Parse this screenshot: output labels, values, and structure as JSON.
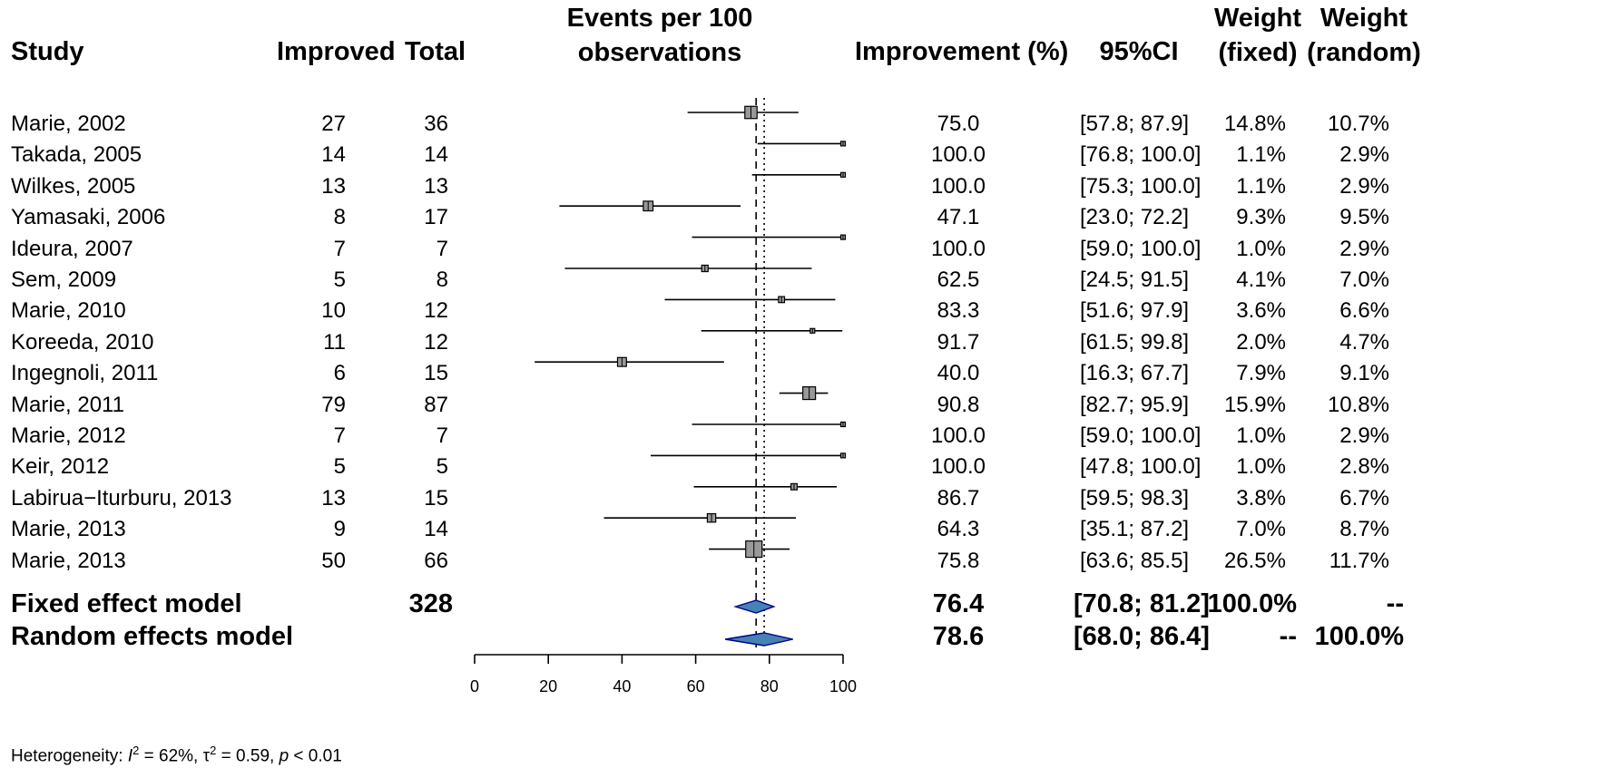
{
  "headers": {
    "study": "Study",
    "improved": "Improved",
    "total": "Total",
    "events_line1": "Events per 100",
    "events_line2": "observations",
    "improvement": "Improvement (%)",
    "ci": "95%CI",
    "wf_line1": "Weight",
    "wf_line2": "(fixed)",
    "wr_line1": "Weight",
    "wr_line2": "(random)"
  },
  "studies": [
    {
      "study": "Marie, 2002",
      "improved": "27",
      "total": "36",
      "improvement": "75.0",
      "ci": "[57.8;  87.9]",
      "wf": "14.8%",
      "wr": "10.7%",
      "est": 75.0,
      "lo": 57.8,
      "hi": 87.9,
      "w_fixed": 14.8
    },
    {
      "study": "Takada, 2005",
      "improved": "14",
      "total": "14",
      "improvement": "100.0",
      "ci": "[76.8; 100.0]",
      "wf": "1.1%",
      "wr": "2.9%",
      "est": 100.0,
      "lo": 76.8,
      "hi": 100.0,
      "w_fixed": 1.1
    },
    {
      "study": "Wilkes, 2005",
      "improved": "13",
      "total": "13",
      "improvement": "100.0",
      "ci": "[75.3; 100.0]",
      "wf": "1.1%",
      "wr": "2.9%",
      "est": 100.0,
      "lo": 75.3,
      "hi": 100.0,
      "w_fixed": 1.1
    },
    {
      "study": "Yamasaki, 2006",
      "improved": "8",
      "total": "17",
      "improvement": "47.1",
      "ci": "[23.0;  72.2]",
      "wf": "9.3%",
      "wr": "9.5%",
      "est": 47.1,
      "lo": 23.0,
      "hi": 72.2,
      "w_fixed": 9.3
    },
    {
      "study": "Ideura, 2007",
      "improved": "7",
      "total": "7",
      "improvement": "100.0",
      "ci": "[59.0; 100.0]",
      "wf": "1.0%",
      "wr": "2.9%",
      "est": 100.0,
      "lo": 59.0,
      "hi": 100.0,
      "w_fixed": 1.0
    },
    {
      "study": "Sem, 2009",
      "improved": "5",
      "total": "8",
      "improvement": "62.5",
      "ci": "[24.5;  91.5]",
      "wf": "4.1%",
      "wr": "7.0%",
      "est": 62.5,
      "lo": 24.5,
      "hi": 91.5,
      "w_fixed": 4.1
    },
    {
      "study": "Marie, 2010",
      "improved": "10",
      "total": "12",
      "improvement": "83.3",
      "ci": "[51.6;  97.9]",
      "wf": "3.6%",
      "wr": "6.6%",
      "est": 83.3,
      "lo": 51.6,
      "hi": 97.9,
      "w_fixed": 3.6
    },
    {
      "study": "Koreeda, 2010",
      "improved": "11",
      "total": "12",
      "improvement": "91.7",
      "ci": "[61.5;  99.8]",
      "wf": "2.0%",
      "wr": "4.7%",
      "est": 91.7,
      "lo": 61.5,
      "hi": 99.8,
      "w_fixed": 2.0
    },
    {
      "study": "Ingegnoli, 2011",
      "improved": "6",
      "total": "15",
      "improvement": "40.0",
      "ci": "[16.3;  67.7]",
      "wf": "7.9%",
      "wr": "9.1%",
      "est": 40.0,
      "lo": 16.3,
      "hi": 67.7,
      "w_fixed": 7.9
    },
    {
      "study": "Marie, 2011",
      "improved": "79",
      "total": "87",
      "improvement": "90.8",
      "ci": "[82.7;  95.9]",
      "wf": "15.9%",
      "wr": "10.8%",
      "est": 90.8,
      "lo": 82.7,
      "hi": 95.9,
      "w_fixed": 15.9
    },
    {
      "study": "Marie, 2012",
      "improved": "7",
      "total": "7",
      "improvement": "100.0",
      "ci": "[59.0; 100.0]",
      "wf": "1.0%",
      "wr": "2.9%",
      "est": 100.0,
      "lo": 59.0,
      "hi": 100.0,
      "w_fixed": 1.0
    },
    {
      "study": "Keir, 2012",
      "improved": "5",
      "total": "5",
      "improvement": "100.0",
      "ci": "[47.8; 100.0]",
      "wf": "1.0%",
      "wr": "2.8%",
      "est": 100.0,
      "lo": 47.8,
      "hi": 100.0,
      "w_fixed": 1.0
    },
    {
      "study": "Labirua−Iturburu, 2013",
      "improved": "13",
      "total": "15",
      "improvement": "86.7",
      "ci": "[59.5;  98.3]",
      "wf": "3.8%",
      "wr": "6.7%",
      "est": 86.7,
      "lo": 59.5,
      "hi": 98.3,
      "w_fixed": 3.8
    },
    {
      "study": "Marie, 2013",
      "improved": "9",
      "total": "14",
      "improvement": "64.3",
      "ci": "[35.1;  87.2]",
      "wf": "7.0%",
      "wr": "8.7%",
      "est": 64.3,
      "lo": 35.1,
      "hi": 87.2,
      "w_fixed": 7.0
    },
    {
      "study": "Marie, 2013",
      "improved": "50",
      "total": "66",
      "improvement": "75.8",
      "ci": "[63.6;  85.5]",
      "wf": "26.5%",
      "wr": "11.7%",
      "est": 75.8,
      "lo": 63.6,
      "hi": 85.5,
      "w_fixed": 26.5
    }
  ],
  "summary": [
    {
      "label": "Fixed effect model",
      "total": "328",
      "improvement": "76.4",
      "ci": "[70.8;  81.2]",
      "wf": "100.0%",
      "wr": "--",
      "est": 76.4,
      "lo": 70.8,
      "hi": 81.2
    },
    {
      "label": "Random effects model",
      "total": "",
      "improvement": "78.6",
      "ci": "[68.0;  86.4]",
      "wf": "--",
      "wr": "100.0%",
      "est": 78.6,
      "lo": 68.0,
      "hi": 86.4
    }
  ],
  "heterogeneity": {
    "prefix": "Heterogeneity: ",
    "i2_label": "I",
    "i2_value": " = 62%, ",
    "tau2_label": "τ",
    "tau2_value": " = 0.59, ",
    "p_label": "p",
    "p_value": " < 0.01"
  },
  "colors": {
    "square_fill": "#999999",
    "diamond_fill": "#4682B4",
    "diamond_stroke": "#00008B"
  },
  "chart_data": {
    "type": "forest",
    "xlim": [
      0,
      100
    ],
    "xticks": [
      0,
      20,
      40,
      60,
      80,
      100
    ],
    "fixed_line": 76.4,
    "random_line": 78.6
  }
}
